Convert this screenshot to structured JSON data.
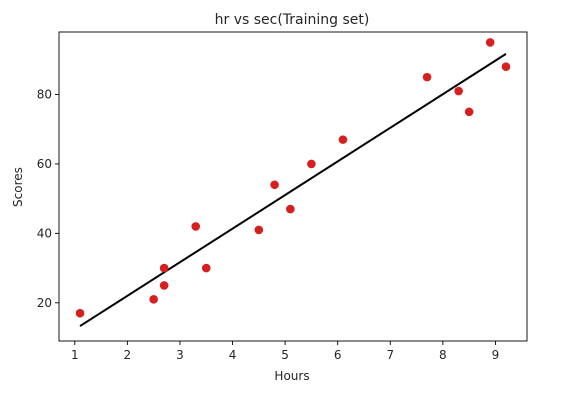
{
  "chart_data": {
    "type": "scatter",
    "title": "hr vs sec(Training set)",
    "xlabel": "Hours",
    "ylabel": "Scores",
    "xlim": [
      0.7,
      9.6
    ],
    "ylim": [
      9,
      98
    ],
    "xticks": [
      1,
      2,
      3,
      4,
      5,
      6,
      7,
      8,
      9
    ],
    "yticks": [
      20,
      40,
      60,
      80
    ],
    "grid": false,
    "series": [
      {
        "type": "scatter",
        "color": "#d62020",
        "points": [
          {
            "x": 1.1,
            "y": 17
          },
          {
            "x": 2.5,
            "y": 21
          },
          {
            "x": 2.7,
            "y": 25
          },
          {
            "x": 2.7,
            "y": 30
          },
          {
            "x": 3.3,
            "y": 42
          },
          {
            "x": 3.5,
            "y": 30
          },
          {
            "x": 4.5,
            "y": 41
          },
          {
            "x": 4.8,
            "y": 54
          },
          {
            "x": 5.1,
            "y": 47
          },
          {
            "x": 5.5,
            "y": 60
          },
          {
            "x": 6.1,
            "y": 67
          },
          {
            "x": 7.7,
            "y": 85
          },
          {
            "x": 8.3,
            "y": 81
          },
          {
            "x": 8.5,
            "y": 75
          },
          {
            "x": 8.9,
            "y": 95
          },
          {
            "x": 9.2,
            "y": 88
          }
        ]
      },
      {
        "type": "line",
        "color": "#000000",
        "points": [
          {
            "x": 1.1,
            "y": 13.3
          },
          {
            "x": 9.2,
            "y": 91.7
          }
        ]
      }
    ]
  }
}
